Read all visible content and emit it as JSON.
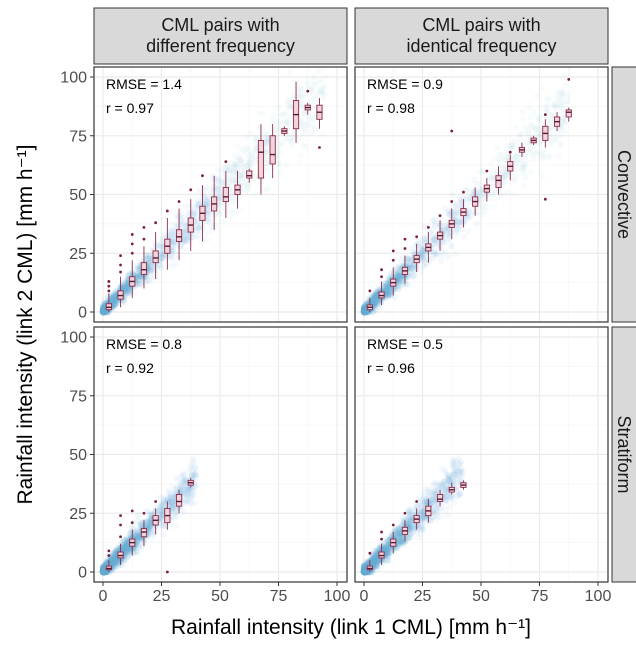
{
  "chart_data": {
    "type": "scatter",
    "facet_layout": "2x2 grid, column strips on top, row strips on right",
    "columns": [
      "CML pairs with\ndifferent frequency",
      "CML pairs with\nidentical frequency"
    ],
    "rows": [
      "Convective",
      "Stratiform"
    ],
    "xlabel": "Rainfall intensity (link 1 CML) [mm h⁻¹]",
    "ylabel": "Rainfall intensity (link 2 CML) [mm h⁻¹]",
    "xlim": [
      0,
      100
    ],
    "ylim": [
      0,
      100
    ],
    "x_ticks": [
      0,
      25,
      50,
      75,
      100
    ],
    "y_ticks": [
      0,
      25,
      50,
      75,
      100
    ],
    "grid": true,
    "colors": {
      "points": "#6baed6",
      "box_fill": "#f2d4dc",
      "box_line": "#8c2d4a",
      "strip": "#d9d9d9"
    },
    "panels": [
      {
        "column": 0,
        "row": 0,
        "annotation": {
          "rmse": "RMSE = 1.4",
          "r": "r = 0.97"
        },
        "point_cloud_max_x": 95,
        "boxes": [
          {
            "x": 2.5,
            "q1": 1,
            "med": 2,
            "q3": 3.5,
            "lo": 0,
            "hi": 8
          },
          {
            "x": 7.5,
            "q1": 5.5,
            "med": 7,
            "q3": 9,
            "lo": 2,
            "hi": 15
          },
          {
            "x": 12.5,
            "q1": 11,
            "med": 13,
            "q3": 15,
            "lo": 6,
            "hi": 22
          },
          {
            "x": 17.5,
            "q1": 16,
            "med": 18,
            "q3": 21,
            "lo": 10,
            "hi": 28
          },
          {
            "x": 22.5,
            "q1": 21,
            "med": 23,
            "q3": 26,
            "lo": 14,
            "hi": 34
          },
          {
            "x": 27.5,
            "q1": 25,
            "med": 28,
            "q3": 31,
            "lo": 18,
            "hi": 40
          },
          {
            "x": 32.5,
            "q1": 30,
            "med": 32,
            "q3": 35,
            "lo": 22,
            "hi": 44
          },
          {
            "x": 37.5,
            "q1": 34,
            "med": 37,
            "q3": 40,
            "lo": 26,
            "hi": 48
          },
          {
            "x": 42.5,
            "q1": 39,
            "med": 42,
            "q3": 45,
            "lo": 30,
            "hi": 54
          },
          {
            "x": 47.5,
            "q1": 43,
            "med": 46,
            "q3": 49,
            "lo": 35,
            "hi": 58
          },
          {
            "x": 52.5,
            "q1": 47,
            "med": 49,
            "q3": 53,
            "lo": 40,
            "hi": 60
          },
          {
            "x": 57.5,
            "q1": 50,
            "med": 52,
            "q3": 54,
            "lo": 44,
            "hi": 60
          },
          {
            "x": 62.5,
            "q1": 57,
            "med": 58,
            "q3": 60,
            "lo": 55,
            "hi": 61
          },
          {
            "x": 67.5,
            "q1": 57,
            "med": 68,
            "q3": 73,
            "lo": 50,
            "hi": 80
          },
          {
            "x": 72.5,
            "q1": 63,
            "med": 67,
            "q3": 75,
            "lo": 57,
            "hi": 80
          },
          {
            "x": 77.5,
            "q1": 76,
            "med": 77,
            "q3": 78,
            "lo": 75,
            "hi": 79
          },
          {
            "x": 82.5,
            "q1": 78,
            "med": 84,
            "q3": 90,
            "lo": 72,
            "hi": 98
          },
          {
            "x": 87.5,
            "q1": 86,
            "med": 87,
            "q3": 88,
            "lo": 84,
            "hi": 89
          },
          {
            "x": 92.5,
            "q1": 82,
            "med": 85,
            "q3": 88,
            "lo": 78,
            "hi": 91
          }
        ],
        "outliers": [
          [
            2.5,
            9
          ],
          [
            2.5,
            11
          ],
          [
            2.5,
            13
          ],
          [
            7.5,
            17
          ],
          [
            7.5,
            20
          ],
          [
            7.5,
            24
          ],
          [
            12.5,
            25
          ],
          [
            12.5,
            29
          ],
          [
            12.5,
            33
          ],
          [
            17.5,
            31
          ],
          [
            17.5,
            36
          ],
          [
            22.5,
            38
          ],
          [
            27.5,
            43
          ],
          [
            32.5,
            47
          ],
          [
            37.5,
            52
          ],
          [
            42.5,
            58
          ],
          [
            52.5,
            64
          ],
          [
            87.5,
            94
          ],
          [
            92.5,
            70
          ]
        ]
      },
      {
        "column": 1,
        "row": 0,
        "annotation": {
          "rmse": "RMSE = 0.9",
          "r": "r = 0.98"
        },
        "point_cloud_max_x": 88,
        "boxes": [
          {
            "x": 2.5,
            "q1": 1,
            "med": 2,
            "q3": 3,
            "lo": 0,
            "hi": 6
          },
          {
            "x": 7.5,
            "q1": 6,
            "med": 7,
            "q3": 8.5,
            "lo": 3,
            "hi": 13
          },
          {
            "x": 12.5,
            "q1": 11,
            "med": 12.5,
            "q3": 14,
            "lo": 7,
            "hi": 19
          },
          {
            "x": 17.5,
            "q1": 16,
            "med": 17.5,
            "q3": 19,
            "lo": 12,
            "hi": 24
          },
          {
            "x": 22.5,
            "q1": 21,
            "med": 22.5,
            "q3": 24,
            "lo": 17,
            "hi": 29
          },
          {
            "x": 27.5,
            "q1": 26,
            "med": 27.5,
            "q3": 29,
            "lo": 21,
            "hi": 34
          },
          {
            "x": 32.5,
            "q1": 31,
            "med": 32.5,
            "q3": 34,
            "lo": 26,
            "hi": 39
          },
          {
            "x": 37.5,
            "q1": 36,
            "med": 37.5,
            "q3": 39,
            "lo": 31,
            "hi": 44
          },
          {
            "x": 42.5,
            "q1": 41,
            "med": 42.5,
            "q3": 44,
            "lo": 36,
            "hi": 48
          },
          {
            "x": 47.5,
            "q1": 45,
            "med": 47,
            "q3": 49,
            "lo": 41,
            "hi": 53
          },
          {
            "x": 52.5,
            "q1": 51,
            "med": 52.5,
            "q3": 54,
            "lo": 47,
            "hi": 57
          },
          {
            "x": 57.5,
            "q1": 53,
            "med": 56,
            "q3": 58,
            "lo": 50,
            "hi": 62
          },
          {
            "x": 62.5,
            "q1": 60,
            "med": 62,
            "q3": 64,
            "lo": 56,
            "hi": 67
          },
          {
            "x": 67.5,
            "q1": 68,
            "med": 69,
            "q3": 70,
            "lo": 66,
            "hi": 72
          },
          {
            "x": 72.5,
            "q1": 72,
            "med": 73,
            "q3": 74,
            "lo": 71,
            "hi": 75
          },
          {
            "x": 77.5,
            "q1": 73,
            "med": 76,
            "q3": 79,
            "lo": 70,
            "hi": 82
          },
          {
            "x": 82.5,
            "q1": 79,
            "med": 81,
            "q3": 83,
            "lo": 77,
            "hi": 85
          },
          {
            "x": 87.5,
            "q1": 83,
            "med": 85,
            "q3": 86,
            "lo": 81,
            "hi": 87
          }
        ],
        "outliers": [
          [
            2.5,
            9
          ],
          [
            7.5,
            15
          ],
          [
            7.5,
            18
          ],
          [
            12.5,
            22
          ],
          [
            12.5,
            26
          ],
          [
            17.5,
            27
          ],
          [
            17.5,
            31
          ],
          [
            22.5,
            32
          ],
          [
            27.5,
            36
          ],
          [
            32.5,
            41
          ],
          [
            37.5,
            47
          ],
          [
            42.5,
            51
          ],
          [
            52.5,
            60
          ],
          [
            37.5,
            77
          ],
          [
            62.5,
            68
          ],
          [
            77.5,
            48
          ],
          [
            77.5,
            84
          ],
          [
            87.5,
            99
          ]
        ]
      },
      {
        "column": 0,
        "row": 1,
        "annotation": {
          "rmse": "RMSE = 0.8",
          "r": "r = 0.92"
        },
        "point_cloud_max_x": 40,
        "boxes": [
          {
            "x": 2.5,
            "q1": 1,
            "med": 1.5,
            "q3": 2.5,
            "lo": 0,
            "hi": 5
          },
          {
            "x": 7.5,
            "q1": 6,
            "med": 7,
            "q3": 8.5,
            "lo": 3,
            "hi": 12
          },
          {
            "x": 12.5,
            "q1": 11,
            "med": 12.5,
            "q3": 14,
            "lo": 7,
            "hi": 18
          },
          {
            "x": 17.5,
            "q1": 15,
            "med": 17,
            "q3": 18.5,
            "lo": 11,
            "hi": 22
          },
          {
            "x": 22.5,
            "q1": 20,
            "med": 22,
            "q3": 24,
            "lo": 16,
            "hi": 27
          },
          {
            "x": 27.5,
            "q1": 21,
            "med": 24,
            "q3": 27,
            "lo": 18,
            "hi": 30
          },
          {
            "x": 32.5,
            "q1": 28,
            "med": 30,
            "q3": 33,
            "lo": 25,
            "hi": 35
          },
          {
            "x": 37.5,
            "q1": 37,
            "med": 38,
            "q3": 39,
            "lo": 36,
            "hi": 40
          }
        ],
        "outliers": [
          [
            2.5,
            7
          ],
          [
            2.5,
            9
          ],
          [
            7.5,
            15
          ],
          [
            7.5,
            20
          ],
          [
            7.5,
            24
          ],
          [
            12.5,
            21
          ],
          [
            12.5,
            26
          ],
          [
            17.5,
            25
          ],
          [
            22.5,
            30
          ],
          [
            27.5,
            0
          ]
        ]
      },
      {
        "column": 1,
        "row": 1,
        "annotation": {
          "rmse": "RMSE = 0.5",
          "r": "r = 0.96"
        },
        "point_cloud_max_x": 42,
        "boxes": [
          {
            "x": 2.5,
            "q1": 1,
            "med": 1.5,
            "q3": 2.5,
            "lo": 0,
            "hi": 5
          },
          {
            "x": 7.5,
            "q1": 6,
            "med": 7,
            "q3": 8.5,
            "lo": 3,
            "hi": 12
          },
          {
            "x": 12.5,
            "q1": 11,
            "med": 12.5,
            "q3": 14,
            "lo": 8,
            "hi": 17
          },
          {
            "x": 17.5,
            "q1": 16,
            "med": 17.5,
            "q3": 19,
            "lo": 13,
            "hi": 22
          },
          {
            "x": 22.5,
            "q1": 21,
            "med": 22.5,
            "q3": 24,
            "lo": 18,
            "hi": 27
          },
          {
            "x": 27.5,
            "q1": 24,
            "med": 26,
            "q3": 28,
            "lo": 21,
            "hi": 31
          },
          {
            "x": 32.5,
            "q1": 30,
            "med": 31,
            "q3": 33,
            "lo": 28,
            "hi": 35
          },
          {
            "x": 37.5,
            "q1": 34,
            "med": 35,
            "q3": 36,
            "lo": 33,
            "hi": 38
          },
          {
            "x": 42.5,
            "q1": 36,
            "med": 37,
            "q3": 38,
            "lo": 35,
            "hi": 39
          }
        ],
        "outliers": [
          [
            2.5,
            8
          ],
          [
            7.5,
            14
          ],
          [
            7.5,
            17
          ],
          [
            12.5,
            20
          ],
          [
            17.5,
            25
          ],
          [
            22.5,
            30
          ]
        ]
      }
    ]
  }
}
